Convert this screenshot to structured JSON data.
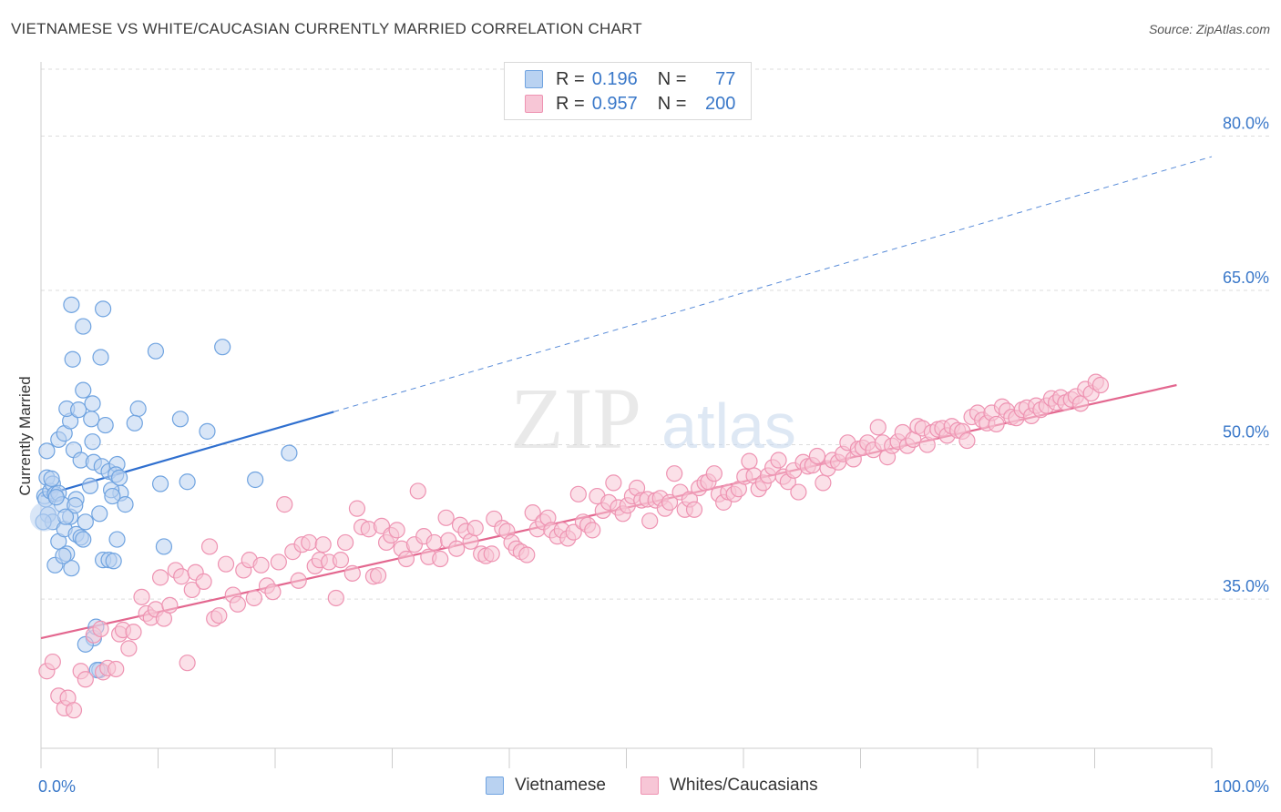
{
  "title": "VIETNAMESE VS WHITE/CAUCASIAN CURRENTLY MARRIED CORRELATION CHART",
  "source": "Source: ZipAtlas.com",
  "watermark": {
    "zip": "ZIP",
    "atlas": "atlas"
  },
  "colors": {
    "blue": "#6fa3e0",
    "blue_fill": "#b9d2f1",
    "blue_line": "#2f6fcf",
    "pink": "#ee93b2",
    "pink_fill": "#f7c6d6",
    "pink_line": "#e3678f",
    "axis_text": "#3a78c9",
    "grid": "#dddddd"
  },
  "legend": {
    "rows": [
      {
        "r_label": "R =",
        "r_value": "0.196",
        "n_label": "N =",
        "n_value": "77",
        "color": "blue"
      },
      {
        "r_label": "R =",
        "r_value": "0.957",
        "n_label": "N =",
        "n_value": "200",
        "color": "pink"
      }
    ]
  },
  "bottom_legend": [
    {
      "label": "Vietnamese",
      "color": "blue"
    },
    {
      "label": "Whites/Caucasians",
      "color": "pink"
    }
  ],
  "chart_data": {
    "type": "scatter",
    "title": "VIETNAMESE VS WHITE/CAUCASIAN CURRENTLY MARRIED CORRELATION CHART",
    "xlabel": "",
    "ylabel": "Currently Married",
    "xlim": [
      0,
      100
    ],
    "ylim": [
      20.5,
      86.5
    ],
    "x_tick_labels": [
      "0.0%",
      "100.0%"
    ],
    "y_ticks": [
      35,
      50,
      65,
      80
    ],
    "y_tick_labels": [
      "35.0%",
      "50.0%",
      "65.0%",
      "80.0%"
    ],
    "grid": true,
    "legend_position": "top-center",
    "series": [
      {
        "name": "Vietnamese",
        "color": "blue",
        "r": 0.196,
        "n": 77,
        "trend": {
          "x0": 0,
          "y0": 45.0,
          "x_solid_end": 25,
          "y_solid_end": 53.2,
          "x1": 100,
          "y1": 78.0
        },
        "points": [
          [
            0.3,
            45.0
          ],
          [
            0.5,
            46.8
          ],
          [
            0.4,
            44.7
          ],
          [
            0.6,
            43.2
          ],
          [
            0.8,
            45.5
          ],
          [
            0.5,
            49.4
          ],
          [
            1.0,
            46.2
          ],
          [
            1.2,
            45.2
          ],
          [
            1.5,
            45.3
          ],
          [
            1.8,
            44.2
          ],
          [
            1.0,
            42.5
          ],
          [
            1.5,
            40.6
          ],
          [
            1.2,
            38.3
          ],
          [
            2.2,
            39.4
          ],
          [
            2.6,
            38.0
          ],
          [
            2.0,
            41.8
          ],
          [
            2.5,
            43.0
          ],
          [
            3.0,
            41.3
          ],
          [
            3.4,
            41.0
          ],
          [
            3.8,
            42.5
          ],
          [
            3.6,
            40.8
          ],
          [
            3.0,
            44.7
          ],
          [
            1.5,
            50.5
          ],
          [
            2.0,
            51.1
          ],
          [
            2.5,
            52.3
          ],
          [
            2.2,
            53.5
          ],
          [
            3.2,
            53.4
          ],
          [
            3.6,
            55.3
          ],
          [
            4.3,
            52.5
          ],
          [
            2.8,
            49.5
          ],
          [
            4.4,
            50.3
          ],
          [
            3.4,
            48.5
          ],
          [
            4.5,
            48.3
          ],
          [
            5.2,
            47.9
          ],
          [
            5.8,
            47.4
          ],
          [
            6.5,
            48.1
          ],
          [
            6.4,
            47.1
          ],
          [
            6.8,
            45.3
          ],
          [
            6.0,
            45.6
          ],
          [
            6.7,
            46.8
          ],
          [
            5.5,
            51.9
          ],
          [
            4.4,
            54.0
          ],
          [
            4.2,
            46.0
          ],
          [
            6.5,
            40.8
          ],
          [
            5.3,
            38.8
          ],
          [
            5.8,
            38.8
          ],
          [
            6.2,
            38.7
          ],
          [
            5.0,
            43.3
          ],
          [
            2.6,
            63.6
          ],
          [
            5.3,
            63.2
          ],
          [
            3.6,
            61.5
          ],
          [
            2.7,
            58.3
          ],
          [
            5.1,
            58.5
          ],
          [
            9.8,
            59.1
          ],
          [
            15.5,
            59.5
          ],
          [
            8.3,
            53.5
          ],
          [
            8.0,
            52.1
          ],
          [
            11.9,
            52.5
          ],
          [
            14.2,
            51.3
          ],
          [
            21.2,
            49.2
          ],
          [
            10.2,
            46.2
          ],
          [
            12.5,
            46.4
          ],
          [
            18.3,
            46.6
          ],
          [
            10.5,
            40.1
          ],
          [
            4.5,
            31.2
          ],
          [
            4.7,
            32.3
          ],
          [
            3.8,
            30.6
          ],
          [
            5.0,
            28.1
          ],
          [
            4.8,
            28.1
          ],
          [
            0.2,
            42.5
          ],
          [
            1.9,
            39.2
          ],
          [
            2.9,
            44.1
          ],
          [
            0.9,
            46.7
          ],
          [
            6.1,
            45.0
          ],
          [
            7.2,
            44.2
          ],
          [
            1.3,
            44.9
          ],
          [
            2.1,
            43.0
          ]
        ]
      },
      {
        "name": "Whites/Caucasians",
        "color": "pink",
        "r": 0.957,
        "n": 200,
        "trend": {
          "x0": 0,
          "y0": 31.2,
          "x1": 97,
          "y1": 55.8
        },
        "points": [
          [
            0.5,
            28.0
          ],
          [
            1.0,
            28.9
          ],
          [
            1.5,
            25.6
          ],
          [
            2.0,
            24.4
          ],
          [
            2.3,
            25.4
          ],
          [
            2.8,
            24.2
          ],
          [
            3.4,
            28.0
          ],
          [
            3.8,
            27.2
          ],
          [
            4.5,
            31.5
          ],
          [
            5.1,
            32.1
          ],
          [
            5.3,
            27.9
          ],
          [
            5.7,
            28.3
          ],
          [
            6.4,
            28.2
          ],
          [
            6.7,
            31.6
          ],
          [
            7.0,
            32.0
          ],
          [
            7.5,
            30.2
          ],
          [
            7.9,
            31.8
          ],
          [
            8.6,
            35.2
          ],
          [
            9.0,
            33.6
          ],
          [
            9.4,
            33.2
          ],
          [
            9.8,
            34.0
          ],
          [
            10.2,
            37.1
          ],
          [
            10.5,
            33.1
          ],
          [
            11.0,
            34.4
          ],
          [
            11.5,
            37.8
          ],
          [
            12.0,
            37.2
          ],
          [
            12.5,
            28.8
          ],
          [
            12.9,
            35.9
          ],
          [
            13.2,
            37.6
          ],
          [
            13.9,
            36.7
          ],
          [
            14.4,
            40.1
          ],
          [
            14.8,
            33.1
          ],
          [
            15.2,
            33.4
          ],
          [
            15.8,
            38.4
          ],
          [
            16.4,
            35.4
          ],
          [
            16.8,
            34.5
          ],
          [
            17.3,
            37.8
          ],
          [
            17.8,
            38.8
          ],
          [
            18.2,
            35.1
          ],
          [
            18.8,
            38.3
          ],
          [
            19.3,
            36.3
          ],
          [
            19.8,
            35.7
          ],
          [
            20.3,
            38.6
          ],
          [
            20.8,
            44.2
          ],
          [
            21.5,
            39.6
          ],
          [
            22.0,
            36.8
          ],
          [
            22.3,
            40.3
          ],
          [
            22.9,
            40.5
          ],
          [
            23.4,
            38.2
          ],
          [
            23.8,
            38.8
          ],
          [
            24.1,
            40.3
          ],
          [
            24.6,
            38.6
          ],
          [
            25.2,
            35.1
          ],
          [
            25.6,
            38.8
          ],
          [
            26.0,
            40.5
          ],
          [
            26.6,
            37.5
          ],
          [
            27.0,
            43.8
          ],
          [
            27.4,
            42.0
          ],
          [
            28.0,
            41.8
          ],
          [
            28.4,
            37.2
          ],
          [
            28.8,
            37.3
          ],
          [
            29.1,
            42.1
          ],
          [
            29.5,
            40.5
          ],
          [
            29.9,
            41.2
          ],
          [
            30.4,
            41.7
          ],
          [
            30.8,
            39.9
          ],
          [
            31.2,
            38.9
          ],
          [
            31.9,
            40.3
          ],
          [
            32.2,
            45.5
          ],
          [
            32.7,
            41.1
          ],
          [
            33.1,
            39.1
          ],
          [
            33.6,
            40.5
          ],
          [
            34.1,
            38.9
          ],
          [
            34.6,
            42.9
          ],
          [
            34.8,
            40.7
          ],
          [
            35.5,
            39.9
          ],
          [
            35.8,
            42.2
          ],
          [
            36.3,
            41.6
          ],
          [
            36.7,
            40.6
          ],
          [
            37.1,
            41.9
          ],
          [
            37.6,
            39.4
          ],
          [
            38.0,
            39.2
          ],
          [
            38.5,
            39.4
          ],
          [
            38.7,
            42.8
          ],
          [
            39.4,
            41.9
          ],
          [
            39.8,
            41.6
          ],
          [
            40.2,
            40.5
          ],
          [
            40.6,
            39.9
          ],
          [
            41.0,
            39.6
          ],
          [
            41.5,
            39.3
          ],
          [
            42.0,
            43.4
          ],
          [
            42.4,
            41.8
          ],
          [
            42.9,
            42.5
          ],
          [
            43.3,
            42.9
          ],
          [
            43.6,
            41.7
          ],
          [
            44.1,
            41.1
          ],
          [
            44.5,
            41.7
          ],
          [
            45.0,
            40.9
          ],
          [
            45.5,
            41.5
          ],
          [
            45.9,
            45.2
          ],
          [
            46.3,
            42.5
          ],
          [
            46.7,
            42.2
          ],
          [
            47.1,
            41.7
          ],
          [
            47.5,
            45.0
          ],
          [
            48.0,
            43.6
          ],
          [
            48.5,
            44.4
          ],
          [
            48.9,
            46.3
          ],
          [
            49.3,
            43.9
          ],
          [
            49.7,
            43.3
          ],
          [
            50.1,
            44.1
          ],
          [
            50.5,
            45.0
          ],
          [
            50.9,
            45.8
          ],
          [
            51.3,
            44.6
          ],
          [
            51.8,
            44.7
          ],
          [
            52.0,
            42.6
          ],
          [
            52.5,
            44.6
          ],
          [
            52.9,
            44.8
          ],
          [
            53.3,
            43.8
          ],
          [
            53.7,
            44.4
          ],
          [
            54.1,
            47.2
          ],
          [
            54.6,
            45.4
          ],
          [
            55.0,
            43.7
          ],
          [
            55.4,
            44.7
          ],
          [
            55.8,
            43.7
          ],
          [
            56.2,
            45.8
          ],
          [
            56.7,
            46.3
          ],
          [
            57.0,
            46.4
          ],
          [
            57.5,
            47.2
          ],
          [
            57.9,
            45.2
          ],
          [
            58.3,
            44.4
          ],
          [
            58.7,
            45.4
          ],
          [
            59.2,
            45.2
          ],
          [
            59.6,
            45.7
          ],
          [
            60.1,
            46.9
          ],
          [
            60.5,
            48.4
          ],
          [
            60.9,
            47.0
          ],
          [
            61.3,
            45.7
          ],
          [
            61.7,
            46.3
          ],
          [
            62.1,
            47.0
          ],
          [
            62.5,
            47.8
          ],
          [
            63.0,
            48.5
          ],
          [
            63.4,
            46.9
          ],
          [
            63.8,
            46.4
          ],
          [
            64.3,
            47.5
          ],
          [
            64.7,
            45.4
          ],
          [
            65.1,
            48.3
          ],
          [
            65.5,
            47.9
          ],
          [
            65.9,
            48.0
          ],
          [
            66.3,
            48.9
          ],
          [
            66.8,
            46.3
          ],
          [
            67.2,
            47.7
          ],
          [
            67.6,
            48.5
          ],
          [
            68.1,
            48.3
          ],
          [
            68.5,
            49.1
          ],
          [
            68.9,
            50.2
          ],
          [
            69.4,
            48.6
          ],
          [
            69.8,
            49.6
          ],
          [
            70.2,
            49.7
          ],
          [
            70.6,
            50.2
          ],
          [
            71.1,
            49.5
          ],
          [
            71.5,
            51.7
          ],
          [
            71.9,
            50.2
          ],
          [
            72.3,
            48.8
          ],
          [
            72.7,
            49.9
          ],
          [
            73.2,
            50.3
          ],
          [
            73.6,
            51.2
          ],
          [
            74.0,
            49.9
          ],
          [
            74.5,
            50.5
          ],
          [
            74.9,
            51.8
          ],
          [
            75.3,
            51.6
          ],
          [
            75.7,
            50.0
          ],
          [
            76.1,
            51.2
          ],
          [
            76.6,
            51.5
          ],
          [
            77.0,
            51.6
          ],
          [
            77.4,
            50.9
          ],
          [
            77.8,
            51.8
          ],
          [
            78.3,
            51.4
          ],
          [
            78.7,
            51.3
          ],
          [
            79.1,
            50.4
          ],
          [
            79.5,
            52.7
          ],
          [
            80.0,
            53.1
          ],
          [
            80.4,
            52.4
          ],
          [
            80.8,
            52.1
          ],
          [
            81.2,
            53.1
          ],
          [
            81.6,
            52.0
          ],
          [
            82.1,
            53.7
          ],
          [
            82.5,
            53.3
          ],
          [
            82.9,
            52.7
          ],
          [
            83.3,
            52.6
          ],
          [
            83.8,
            53.4
          ],
          [
            84.2,
            53.6
          ],
          [
            84.6,
            52.8
          ],
          [
            85.0,
            53.8
          ],
          [
            85.4,
            53.4
          ],
          [
            85.9,
            53.8
          ],
          [
            86.3,
            54.5
          ],
          [
            86.7,
            54.1
          ],
          [
            87.1,
            54.6
          ],
          [
            87.5,
            54.1
          ],
          [
            88.0,
            54.4
          ],
          [
            88.4,
            54.7
          ],
          [
            88.8,
            54.0
          ],
          [
            89.2,
            55.4
          ],
          [
            89.7,
            55.0
          ],
          [
            90.1,
            56.1
          ],
          [
            90.5,
            55.8
          ]
        ]
      }
    ]
  }
}
